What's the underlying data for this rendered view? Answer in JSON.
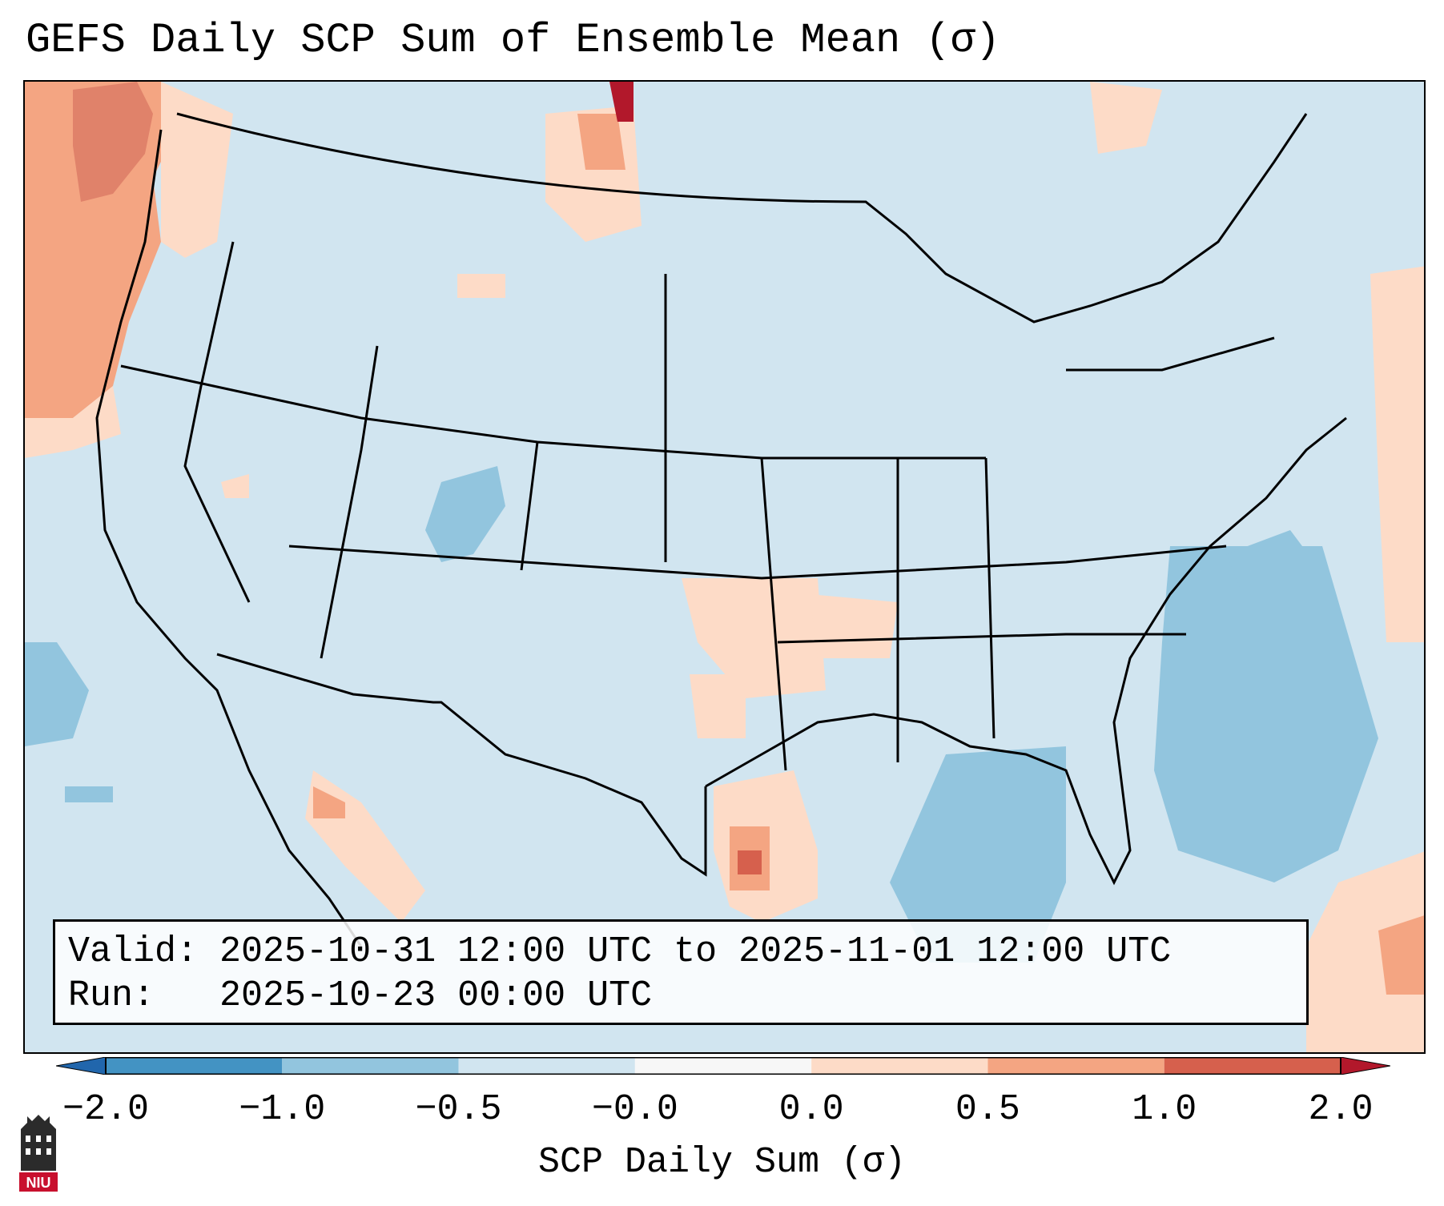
{
  "title": "GEFS Daily SCP Sum of Ensemble Mean (σ)",
  "info": {
    "valid_label": "Valid:",
    "valid_value": "2025-10-31 12:00 UTC to 2025-11-01 12:00 UTC",
    "run_label": "Run:",
    "run_value": "2025-10-23 00:00 UTC"
  },
  "colorbar": {
    "label": "SCP Daily Sum (σ)",
    "ticks": [
      "−2.0",
      "−1.0",
      "−0.5",
      "−0.0",
      "0.0",
      "0.5",
      "1.0",
      "2.0"
    ],
    "bins": [
      "#4393c3",
      "#92c5de",
      "#d1e5f0",
      "#f7f7f7",
      "#fddbc7",
      "#f4a582",
      "#d6604d"
    ],
    "extend_low_color": "#2166ac",
    "extend_high_color": "#b2182b"
  },
  "map": {
    "background_color": "#d1e5f0",
    "region": "CONUS"
  },
  "logo": {
    "text": "NIU",
    "color": "#c8102e"
  }
}
